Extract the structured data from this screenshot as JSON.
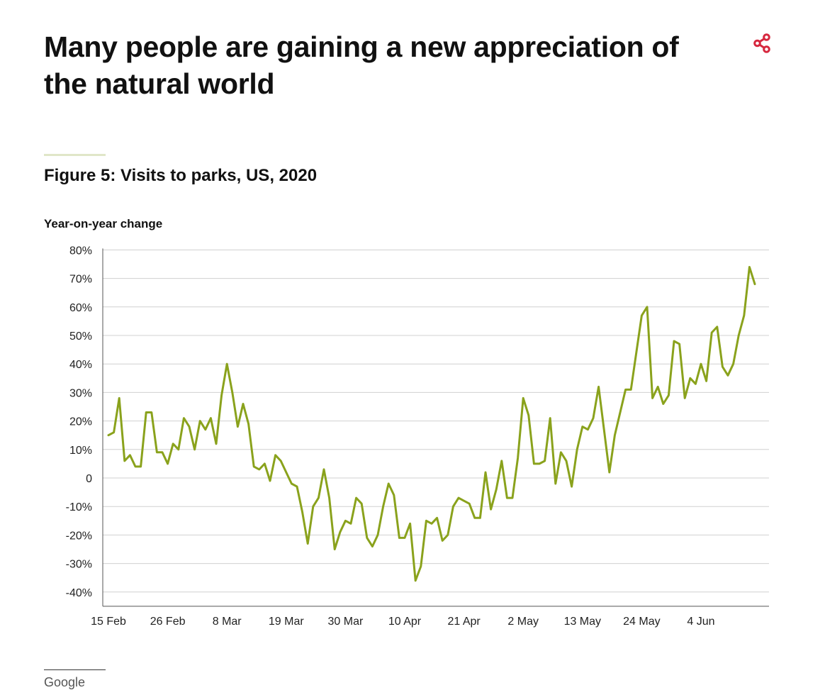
{
  "headline": "Many people are gaining a new appreciation of the natural world",
  "share_icon": "share-icon",
  "accent_color": "#e0e6c8",
  "share_color": "#d6273e",
  "figure_title": "Figure 5: Visits to parks, US, 2020",
  "source": "Google",
  "chart_data": {
    "type": "line",
    "title": "Figure 5: Visits to parks, US, 2020",
    "ylabel": "Year-on-year change",
    "xlabel": "",
    "ylim": [
      -45,
      80
    ],
    "y_ticks": [
      {
        "value": 80,
        "label": "80%"
      },
      {
        "value": 70,
        "label": "70%"
      },
      {
        "value": 60,
        "label": "60%"
      },
      {
        "value": 50,
        "label": "50%"
      },
      {
        "value": 40,
        "label": "40%"
      },
      {
        "value": 30,
        "label": "30%"
      },
      {
        "value": 20,
        "label": "20%"
      },
      {
        "value": 10,
        "label": "10%"
      },
      {
        "value": 0,
        "label": "0"
      },
      {
        "value": -10,
        "label": "-10%"
      },
      {
        "value": -20,
        "label": "-20%"
      },
      {
        "value": -30,
        "label": "-30%"
      },
      {
        "value": -40,
        "label": "-40%"
      }
    ],
    "x_ticks": [
      "15 Feb",
      "26 Feb",
      "8 Mar",
      "19 Mar",
      "30 Mar",
      "10 Apr",
      "21 Apr",
      "2 May",
      "13 May",
      "24 May",
      "4 Jun"
    ],
    "x_start": "15 Feb",
    "grid": true,
    "line_color": "#8aa21c",
    "series": [
      {
        "values": [
          15,
          16,
          28,
          6,
          8,
          4,
          4,
          23,
          23,
          9,
          9,
          5,
          12,
          10,
          21,
          18,
          10,
          20,
          17,
          21,
          12,
          29,
          40,
          30,
          18,
          26,
          19,
          4,
          3,
          5,
          -1,
          8,
          6,
          2,
          -2,
          -3,
          -12,
          -23,
          -10,
          -7,
          3,
          -7,
          -25,
          -19,
          -15,
          -16,
          -7,
          -9,
          -21,
          -24,
          -20,
          -10,
          -2,
          -6,
          -21,
          -21,
          -16,
          -36,
          -31,
          -15,
          -16,
          -14,
          -22,
          -20,
          -10,
          -7,
          -8,
          -9,
          -14,
          -14,
          2,
          -11,
          -4,
          6,
          -7,
          -7,
          7,
          28,
          22,
          5,
          5,
          6,
          21,
          -2,
          9,
          6,
          -3,
          10,
          18,
          17,
          21,
          32,
          17,
          2,
          15,
          23,
          31,
          31,
          44,
          57,
          60,
          28,
          32,
          26,
          29,
          48,
          47,
          28,
          35,
          33,
          40,
          34,
          51,
          53,
          39,
          36,
          40,
          50,
          57,
          74,
          68
        ]
      }
    ]
  }
}
